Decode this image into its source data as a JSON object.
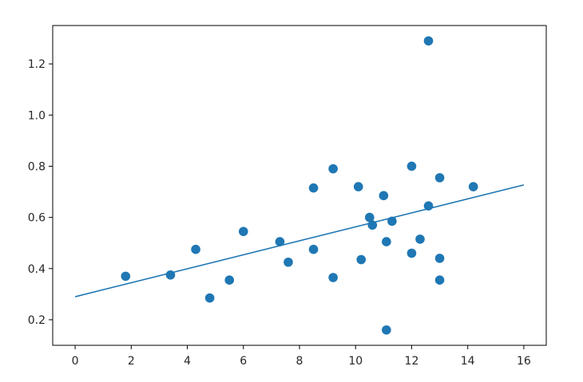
{
  "chart_data": {
    "type": "scatter",
    "title": "",
    "xlabel": "",
    "ylabel": "",
    "xlim": [
      -0.8,
      16.8
    ],
    "ylim": [
      0.1,
      1.35
    ],
    "xticks": [
      0,
      2,
      4,
      6,
      8,
      10,
      12,
      14,
      16
    ],
    "yticks": [
      0.2,
      0.4,
      0.6,
      0.8,
      1.0,
      1.2
    ],
    "xtick_labels": [
      "0",
      "2",
      "4",
      "6",
      "8",
      "10",
      "12",
      "14",
      "16"
    ],
    "ytick_labels": [
      "0.2",
      "0.4",
      "0.6",
      "0.8",
      "1.0",
      "1.2"
    ],
    "grid": false,
    "legend": "none",
    "color": "#1f77b4",
    "points": [
      {
        "x": 1.8,
        "y": 0.37
      },
      {
        "x": 3.4,
        "y": 0.375
      },
      {
        "x": 4.3,
        "y": 0.475
      },
      {
        "x": 4.8,
        "y": 0.285
      },
      {
        "x": 5.5,
        "y": 0.355
      },
      {
        "x": 6.0,
        "y": 0.545
      },
      {
        "x": 7.3,
        "y": 0.505
      },
      {
        "x": 7.6,
        "y": 0.425
      },
      {
        "x": 8.5,
        "y": 0.475
      },
      {
        "x": 8.5,
        "y": 0.715
      },
      {
        "x": 9.2,
        "y": 0.79
      },
      {
        "x": 9.2,
        "y": 0.365
      },
      {
        "x": 10.1,
        "y": 0.72
      },
      {
        "x": 10.2,
        "y": 0.435
      },
      {
        "x": 10.5,
        "y": 0.6
      },
      {
        "x": 10.6,
        "y": 0.57
      },
      {
        "x": 11.0,
        "y": 0.685
      },
      {
        "x": 11.1,
        "y": 0.505
      },
      {
        "x": 11.1,
        "y": 0.16
      },
      {
        "x": 11.3,
        "y": 0.585
      },
      {
        "x": 12.0,
        "y": 0.8
      },
      {
        "x": 12.0,
        "y": 0.46
      },
      {
        "x": 12.3,
        "y": 0.515
      },
      {
        "x": 12.6,
        "y": 0.645
      },
      {
        "x": 12.6,
        "y": 1.29
      },
      {
        "x": 13.0,
        "y": 0.755
      },
      {
        "x": 13.0,
        "y": 0.44
      },
      {
        "x": 13.0,
        "y": 0.355
      },
      {
        "x": 14.2,
        "y": 0.72
      }
    ],
    "fit_line": {
      "x": [
        0,
        16
      ],
      "y": [
        0.29,
        0.727
      ]
    }
  }
}
